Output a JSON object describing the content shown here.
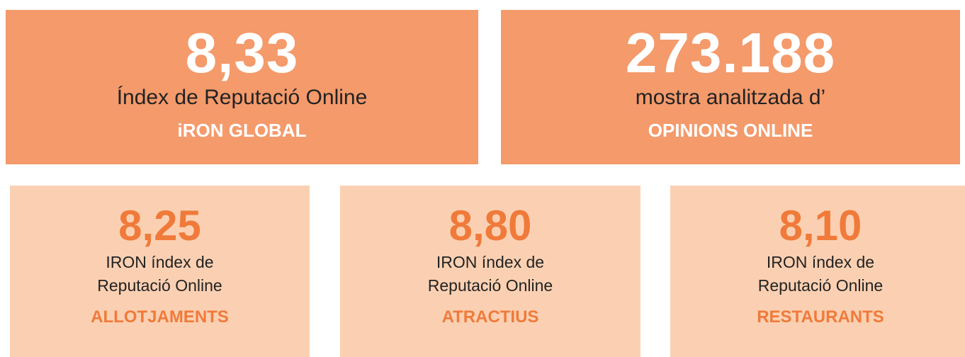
{
  "top_cards": [
    {
      "value": "8,33",
      "label": "Índex de Reputació Online",
      "sublabel": "iRON GLOBAL"
    },
    {
      "value": "273.188",
      "label": "mostra analitzada d’",
      "sublabel": "OPINIONS ONLINE"
    }
  ],
  "bottom_cards": [
    {
      "value": "8,25",
      "label_line1": "IRON índex de",
      "label_line2": "Reputació Online",
      "sublabel": "ALLOTJAMENTS"
    },
    {
      "value": "8,80",
      "label_line1": "IRON índex de",
      "label_line2": "Reputació Online",
      "sublabel": "ATRACTIUS"
    },
    {
      "value": "8,10",
      "label_line1": "IRON índex de",
      "label_line2": "Reputació Online",
      "sublabel": "RESTAURANTS"
    }
  ]
}
